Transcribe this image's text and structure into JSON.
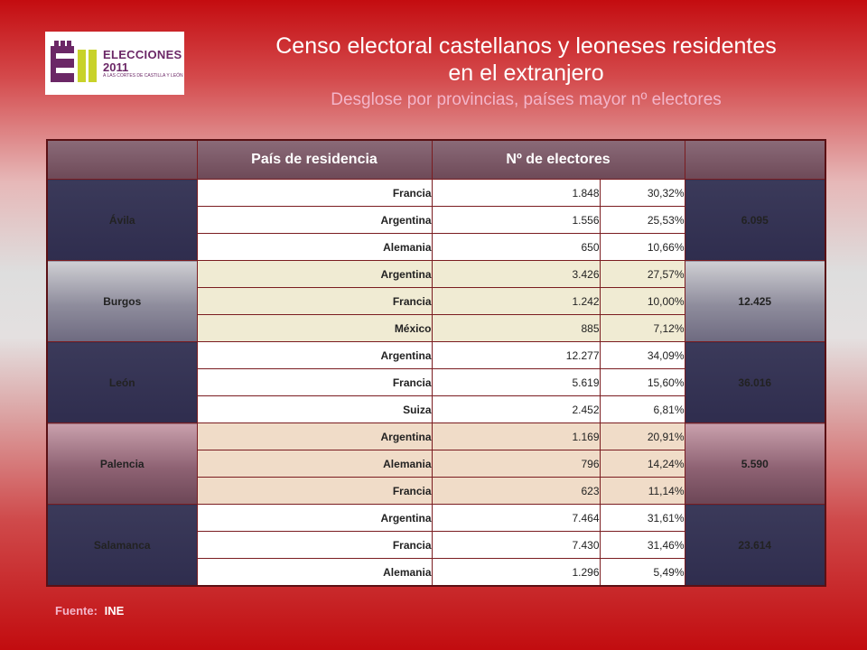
{
  "logo": {
    "line1": "ELECCIONES",
    "line2": "2011",
    "small": "A LAS CORTES DE CASTILLA Y LEÓN"
  },
  "title": {
    "line1": "Censo electoral castellanos y leoneses residentes",
    "line2": "en el extranjero"
  },
  "subtitle": "Desglose por provincias, países mayor nº electores",
  "table": {
    "headers": {
      "country": "País de residencia",
      "electors": "Nº de electores"
    },
    "provinces": [
      {
        "name": "Ávila",
        "total": "6.095",
        "rows": [
          {
            "country": "Francia",
            "electors": "1.848",
            "pct": "30,32%"
          },
          {
            "country": "Argentina",
            "electors": "1.556",
            "pct": "25,53%"
          },
          {
            "country": "Alemania",
            "electors": "650",
            "pct": "10,66%"
          }
        ]
      },
      {
        "name": "Burgos",
        "total": "12.425",
        "rows": [
          {
            "country": "Argentina",
            "electors": "3.426",
            "pct": "27,57%"
          },
          {
            "country": "Francia",
            "electors": "1.242",
            "pct": "10,00%"
          },
          {
            "country": "México",
            "electors": "885",
            "pct": "7,12%"
          }
        ]
      },
      {
        "name": "León",
        "total": "36.016",
        "rows": [
          {
            "country": "Argentina",
            "electors": "12.277",
            "pct": "34,09%"
          },
          {
            "country": "Francia",
            "electors": "5.619",
            "pct": "15,60%"
          },
          {
            "country": "Suiza",
            "electors": "2.452",
            "pct": "6,81%"
          }
        ]
      },
      {
        "name": "Palencia",
        "total": "5.590",
        "rows": [
          {
            "country": "Argentina",
            "electors": "1.169",
            "pct": "20,91%"
          },
          {
            "country": "Alemania",
            "electors": "796",
            "pct": "14,24%"
          },
          {
            "country": "Francia",
            "electors": "623",
            "pct": "11,14%"
          }
        ]
      },
      {
        "name": "Salamanca",
        "total": "23.614",
        "rows": [
          {
            "country": "Argentina",
            "electors": "7.464",
            "pct": "31,61%"
          },
          {
            "country": "Francia",
            "electors": "7.430",
            "pct": "31,46%"
          },
          {
            "country": "Alemania",
            "electors": "1.296",
            "pct": "5,49%"
          }
        ]
      }
    ]
  },
  "source": {
    "label": "Fuente:",
    "value": "INE"
  },
  "colors": {
    "header": "#6e4a58",
    "dark_cell": "#2f2d4e",
    "border": "#7a1c20",
    "accent_text": "#f3b5c9"
  }
}
